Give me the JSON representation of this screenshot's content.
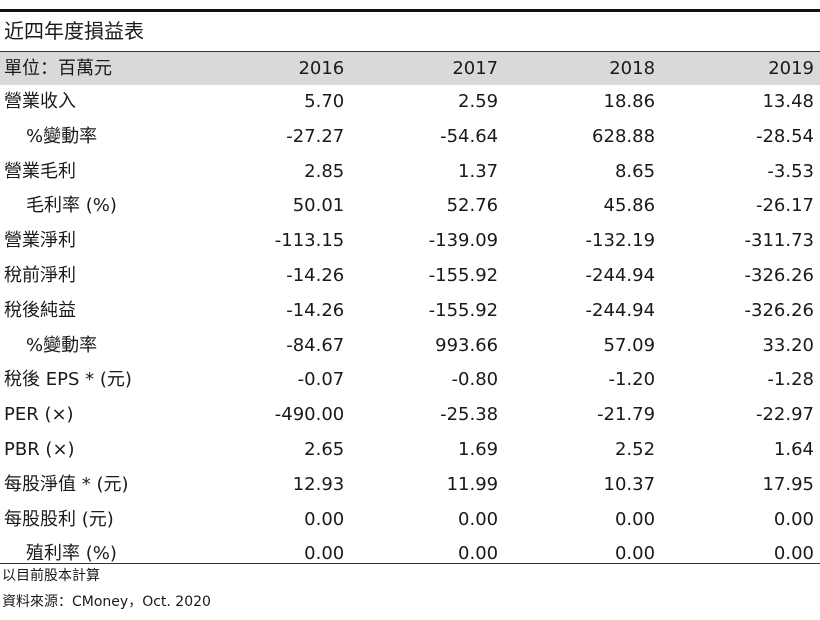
{
  "title": "近四年度損益表",
  "header": {
    "unit_label": "單位：百萬元",
    "years": [
      "2016",
      "2017",
      "2018",
      "2019"
    ]
  },
  "rows": [
    {
      "label": "營業收入",
      "indent": false,
      "values": [
        "5.70",
        "2.59",
        "18.86",
        "13.48"
      ]
    },
    {
      "label": "%變動率",
      "indent": true,
      "values": [
        "-27.27",
        "-54.64",
        "628.88",
        "-28.54"
      ]
    },
    {
      "label": "營業毛利",
      "indent": false,
      "values": [
        "2.85",
        "1.37",
        "8.65",
        "-3.53"
      ]
    },
    {
      "label": "毛利率 (%)",
      "indent": true,
      "values": [
        "50.01",
        "52.76",
        "45.86",
        "-26.17"
      ]
    },
    {
      "label": "營業淨利",
      "indent": false,
      "values": [
        "-113.15",
        "-139.09",
        "-132.19",
        "-311.73"
      ]
    },
    {
      "label": "稅前淨利",
      "indent": false,
      "values": [
        "-14.26",
        "-155.92",
        "-244.94",
        "-326.26"
      ]
    },
    {
      "label": "稅後純益",
      "indent": false,
      "values": [
        "-14.26",
        "-155.92",
        "-244.94",
        "-326.26"
      ]
    },
    {
      "label": "%變動率",
      "indent": true,
      "values": [
        "-84.67",
        "993.66",
        "57.09",
        "33.20"
      ]
    },
    {
      "label": "稅後 EPS * (元)",
      "indent": false,
      "values": [
        "-0.07",
        "-0.80",
        "-1.20",
        "-1.28"
      ]
    },
    {
      "label": "PER (×)",
      "indent": false,
      "values": [
        "-490.00",
        "-25.38",
        "-21.79",
        "-22.97"
      ]
    },
    {
      "label": "PBR (×)",
      "indent": false,
      "values": [
        "2.65",
        "1.69",
        "2.52",
        "1.64"
      ]
    },
    {
      "label": "每股淨值 * (元)",
      "indent": false,
      "values": [
        "12.93",
        "11.99",
        "10.37",
        "17.95"
      ]
    },
    {
      "label": "每股股利 (元)",
      "indent": false,
      "values": [
        "0.00",
        "0.00",
        "0.00",
        "0.00"
      ]
    },
    {
      "label": "殖利率 (%)",
      "indent": true,
      "values": [
        "0.00",
        "0.00",
        "0.00",
        "0.00"
      ]
    }
  ],
  "notes": {
    "basis": "以目前股本計算",
    "source": "資料來源：CMoney，Oct. 2020"
  }
}
